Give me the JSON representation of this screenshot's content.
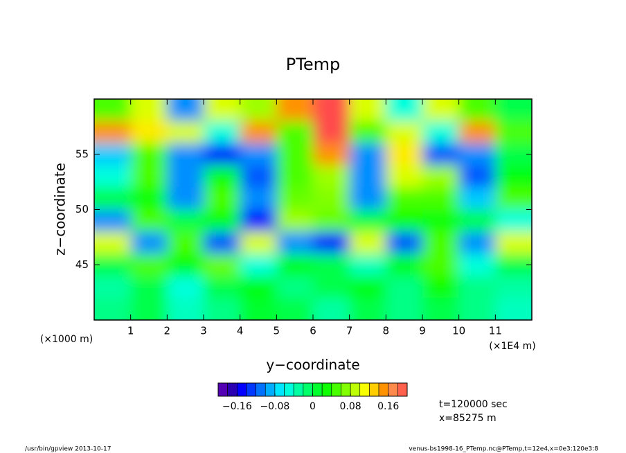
{
  "chart_data": {
    "type": "heatmap",
    "title": "PTemp",
    "x_label": "y−coordinate",
    "y_label": "z−coordinate",
    "x_unit": "(×1E4 m)",
    "y_unit": "(×1000 m)",
    "xlim": [
      0,
      12
    ],
    "xticks": [
      1,
      2,
      3,
      4,
      5,
      6,
      7,
      8,
      9,
      10,
      11
    ],
    "ylim": [
      40,
      60
    ],
    "yticks": [
      45,
      50,
      55
    ],
    "x": [
      0.5,
      1.5,
      2.5,
      3.5,
      4.5,
      5.5,
      6.5,
      7.5,
      8.5,
      9.5,
      10.5,
      11.5
    ],
    "y": [
      59,
      57,
      55,
      53,
      51,
      49,
      47,
      45,
      43,
      41
    ],
    "z": [
      [
        0.05,
        0.1,
        -0.1,
        0.1,
        0.08,
        0.15,
        0.2,
        0.1,
        -0.05,
        0.1,
        0.05,
        0
      ],
      [
        0.15,
        0.12,
        0.1,
        -0.05,
        0.15,
        0.05,
        0.2,
        0.05,
        0.1,
        -0.05,
        0.15,
        0.05
      ],
      [
        -0.08,
        0.05,
        -0.1,
        -0.15,
        -0.1,
        0.05,
        0.15,
        -0.1,
        0.12,
        -0.12,
        -0.1,
        0
      ],
      [
        -0.05,
        0.05,
        -0.1,
        0.02,
        -0.12,
        0.05,
        0.08,
        -0.1,
        0.1,
        0.08,
        -0.12,
        0.02
      ],
      [
        0,
        0.02,
        -0.1,
        0.05,
        -0.1,
        0.06,
        0.07,
        -0.1,
        0.05,
        0.05,
        -0.08,
        0.05
      ],
      [
        -0.1,
        0.05,
        0,
        0.02,
        -0.15,
        0.08,
        0.06,
        0,
        0.03,
        0.02,
        0,
        -0.05
      ],
      [
        0.1,
        -0.1,
        0.05,
        -0.12,
        0.1,
        -0.1,
        -0.15,
        0.1,
        -0.12,
        0.05,
        -0.1,
        0.1
      ],
      [
        0,
        0.05,
        0.02,
        0.06,
        -0.05,
        0.02,
        0,
        -0.04,
        0.02,
        0.05,
        -0.05,
        0
      ],
      [
        -0.03,
        0,
        -0.05,
        0,
        0.02,
        -0.02,
        0,
        0.02,
        -0.02,
        0.03,
        -0.02,
        -0.03
      ],
      [
        -0.02,
        0,
        -0.04,
        -0.02,
        0.01,
        0,
        -0.03,
        0,
        -0.02,
        0,
        -0.02,
        -0.04
      ]
    ],
    "clim": [
      -0.2,
      0.2
    ],
    "cticks": [
      {
        "value": -0.16,
        "label": "−0.16"
      },
      {
        "value": -0.08,
        "label": "−0.08"
      },
      0,
      0.08,
      0.16
    ],
    "annotations": [
      "t=120000 sec",
      "x=85275 m"
    ],
    "footer_left": "/usr/bin/gpview  2013-10-17",
    "footer_right": "venus-bs1998-16_PTemp.nc@PTemp,t=12e4,x=0e3:120e3:8"
  }
}
